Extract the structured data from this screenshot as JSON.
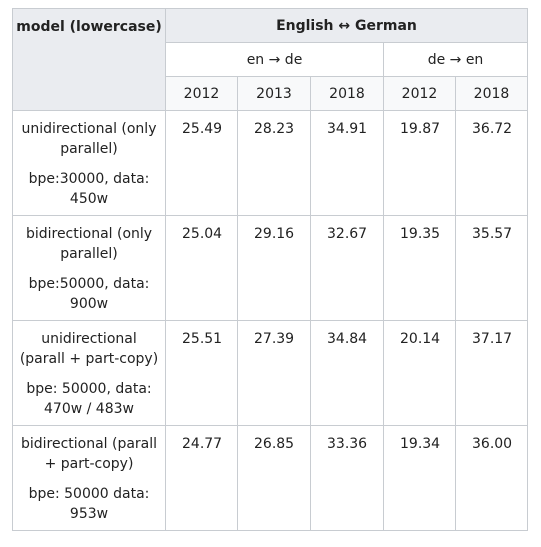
{
  "header": {
    "model": "model (lowercase)",
    "pair": "English ↔ German",
    "dir1": "en → de",
    "dir2": "de → en",
    "years": [
      "2012",
      "2013",
      "2018",
      "2012",
      "2018"
    ]
  },
  "rows": [
    {
      "line1": "unidirectional (only parallel)",
      "line2": "bpe:30000, data: 450w",
      "values": [
        "25.49",
        "28.23",
        "34.91",
        "19.87",
        "36.72"
      ]
    },
    {
      "line1": "bidirectional (only parallel)",
      "line2": "bpe:50000, data: 900w",
      "values": [
        "25.04",
        "29.16",
        "32.67",
        "19.35",
        "35.57"
      ]
    },
    {
      "line1": "unidirectional (parall + part-copy)",
      "line2": "bpe: 50000, data: 470w / 483w",
      "values": [
        "25.51",
        "27.39",
        "34.84",
        "20.14",
        "37.17"
      ]
    },
    {
      "line1": "bidirectional (parall + part-copy)",
      "line2": "bpe: 50000 data: 953w",
      "values": [
        "24.77",
        "26.85",
        "33.36",
        "19.34",
        "36.00"
      ]
    }
  ]
}
